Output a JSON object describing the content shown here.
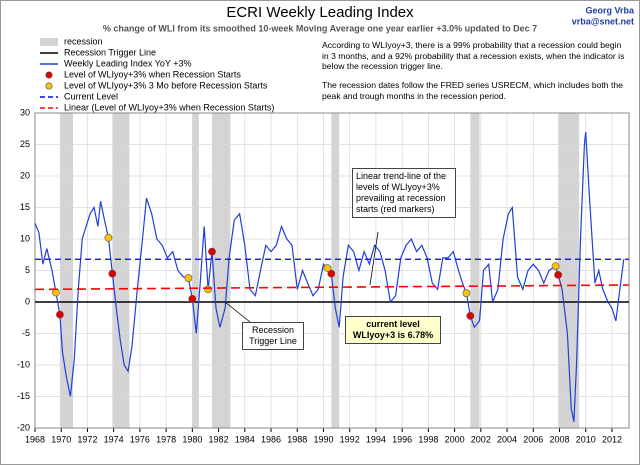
{
  "chart_data": {
    "type": "line",
    "title": "ECRI Weekly Leading Index",
    "subtitle": "% change of WLI from its smoothed 10-week Moving Average one year earlier +3.0% updated to Dec 7",
    "credit": [
      "Georg Vrba",
      "vrba@snet.net"
    ],
    "notes": [
      "According to WLIyoy+3, there is a 99% probability that a recession could begin in 3 months, and a 92% probability that a recession exists, when the indicator is below the recession trigger line.",
      "The recession dates follow the FRED series USRECM, which includes both the peak and trough months in the recession period."
    ],
    "annotations": [
      {
        "text": "Linear trend-line of the levels of WLIyoy+3% prevailing at recession starts (red markers)"
      },
      {
        "text": "Recession Trigger Line"
      },
      {
        "text": [
          "current level",
          "WLIyoy+3 is 6.78%"
        ]
      }
    ],
    "xlim": [
      1968,
      2013.3
    ],
    "ylim": [
      -20,
      30
    ],
    "xticks": [
      1968,
      1970,
      1972,
      1974,
      1976,
      1978,
      1980,
      1982,
      1984,
      1986,
      1988,
      1990,
      1992,
      1994,
      1996,
      1998,
      2000,
      2002,
      2004,
      2006,
      2008,
      2010,
      2012
    ],
    "yticks": [
      -20,
      -15,
      -10,
      -5,
      0,
      5,
      10,
      15,
      20,
      25,
      30
    ],
    "grid": true,
    "recessions": {
      "name": "recession",
      "color": "#d4d4d4",
      "starts": [
        1969.9,
        1973.9,
        1980.0,
        1981.5,
        1990.6,
        2001.2,
        2007.9
      ],
      "ends": [
        1970.9,
        1975.2,
        1980.5,
        1982.9,
        1991.2,
        2001.9,
        2009.5
      ]
    },
    "series": [
      {
        "name": "Recession Trigger Line",
        "type": "hline",
        "color": "#000000",
        "dashed": false,
        "level": 0
      },
      {
        "name": "Weekly Leading Index YoY +3%",
        "type": "line",
        "color": "#1f3fd8",
        "x": [
          1968.0,
          1968.3,
          1968.6,
          1968.9,
          1969.3,
          1969.6,
          1969.9,
          1970.1,
          1970.4,
          1970.7,
          1971.0,
          1971.3,
          1971.6,
          1971.9,
          1972.2,
          1972.5,
          1972.8,
          1973.0,
          1973.3,
          1973.6,
          1973.9,
          1974.2,
          1974.5,
          1974.8,
          1975.1,
          1975.4,
          1975.8,
          1976.2,
          1976.5,
          1976.9,
          1977.3,
          1977.7,
          1978.1,
          1978.5,
          1978.9,
          1979.3,
          1979.7,
          1980.0,
          1980.3,
          1980.6,
          1980.9,
          1981.2,
          1981.5,
          1981.8,
          1982.1,
          1982.5,
          1982.8,
          1983.2,
          1983.6,
          1984.0,
          1984.4,
          1984.8,
          1985.2,
          1985.6,
          1986.0,
          1986.4,
          1986.8,
          1987.2,
          1987.6,
          1988.0,
          1988.4,
          1988.8,
          1989.2,
          1989.6,
          1990.0,
          1990.3,
          1990.6,
          1990.9,
          1991.2,
          1991.5,
          1991.9,
          1992.3,
          1992.7,
          1993.1,
          1993.5,
          1993.9,
          1994.3,
          1994.7,
          1995.1,
          1995.5,
          1995.9,
          1996.3,
          1996.7,
          1997.1,
          1997.5,
          1997.9,
          1998.3,
          1998.7,
          1999.1,
          1999.5,
          1999.9,
          2000.3,
          2000.6,
          2000.9,
          2001.2,
          2001.5,
          2001.9,
          2002.2,
          2002.6,
          2002.9,
          2003.3,
          2003.7,
          2004.1,
          2004.4,
          2004.8,
          2005.2,
          2005.6,
          2006.0,
          2006.4,
          2006.8,
          2007.2,
          2007.7,
          2007.9,
          2008.2,
          2008.6,
          2008.9,
          2009.1,
          2009.3,
          2009.6,
          2009.9,
          2010.0,
          2010.3,
          2010.7,
          2011.0,
          2011.3,
          2011.7,
          2012.0,
          2012.3,
          2012.6,
          2012.9
        ],
        "values": [
          12.5,
          11,
          6,
          8.5,
          5,
          1.5,
          -2,
          -8,
          -12,
          -15,
          -9,
          2,
          10,
          12,
          14,
          15,
          12,
          16,
          13,
          10.2,
          4.5,
          -1,
          -6,
          -10,
          -11,
          -7,
          2,
          10,
          16.5,
          14,
          10,
          9,
          7,
          8,
          5,
          4,
          3.8,
          0.5,
          -5,
          3,
          12,
          2,
          8,
          -1,
          -4,
          -1,
          7,
          13,
          14,
          9,
          2,
          1,
          5,
          9,
          8,
          9,
          12,
          10,
          9,
          2,
          5,
          3,
          1,
          2,
          6,
          5.4,
          4.5,
          -1,
          -4,
          4,
          9,
          8,
          5,
          8,
          6,
          9,
          8,
          5,
          0,
          1,
          7,
          9,
          10,
          8,
          9,
          7,
          3,
          2,
          7,
          7,
          8,
          5,
          3,
          1.4,
          -2.2,
          -4,
          -3,
          5,
          6,
          0,
          2,
          10,
          14,
          15,
          4,
          2,
          5,
          6,
          5,
          3,
          5,
          5.7,
          4.3,
          2,
          -5,
          -17,
          -19,
          -10,
          10,
          25,
          27,
          16,
          3,
          5,
          2,
          0,
          -1,
          -3,
          2,
          6.78
        ]
      },
      {
        "name": "Level of WLIyoy+3% when Recession Starts",
        "type": "scatter",
        "color": "#e00000",
        "x": [
          1969.9,
          1973.9,
          1980.0,
          1981.5,
          1990.6,
          2001.2,
          2007.9
        ],
        "values": [
          -2,
          4.5,
          0.5,
          8,
          4.5,
          -2.2,
          4.3
        ]
      },
      {
        "name": "Level of WLIyoy+3% 3 Mo before Recession Starts",
        "type": "scatter",
        "color": "#ffc000",
        "x": [
          1969.6,
          1973.6,
          1979.7,
          1981.2,
          1990.3,
          2000.9,
          2007.7
        ],
        "values": [
          1.5,
          10.2,
          3.8,
          2,
          5.4,
          1.4,
          5.7
        ]
      },
      {
        "name": "Current Level",
        "type": "hline",
        "color": "#0000ff",
        "dashed": true,
        "level": 6.78
      },
      {
        "name": "Linear (Level of WLIyoy+3% when Recession Starts)",
        "type": "line",
        "color": "#ff0000",
        "dashed": true,
        "x": [
          1968,
          2013.3
        ],
        "values": [
          2.0,
          2.7
        ]
      }
    ]
  }
}
